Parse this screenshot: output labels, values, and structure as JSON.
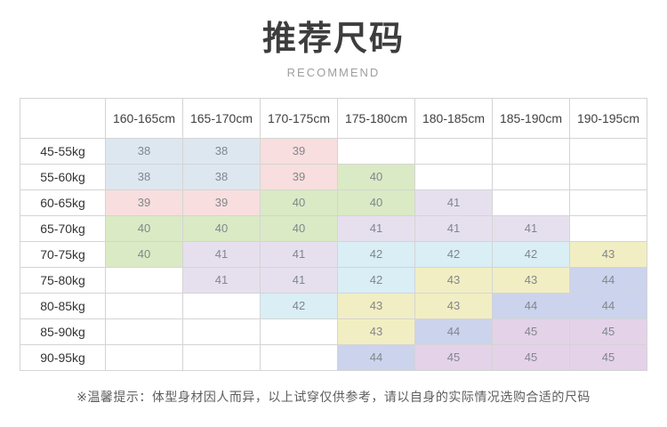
{
  "header": {
    "title": "推荐尺码",
    "subtitle": "RECOMMEND"
  },
  "footer": {
    "note": "※温馨提示：体型身材因人而异，以上试穿仅供参考，请以自身的实际情况选购合适的尺码"
  },
  "colors": {
    "size_38": "#dde7f0",
    "size_39": "#f8dede",
    "size_40": "#daeac5",
    "size_41": "#e6e0ee",
    "size_42": "#d9eef5",
    "size_43": "#f2eec3",
    "size_44": "#ccd3ed",
    "size_45": "#e4d2e9",
    "grid_border": "#d4d4d4",
    "cell_text": "#82868c"
  },
  "chart_data": {
    "type": "table",
    "title": "推荐尺码",
    "subtitle": "RECOMMEND",
    "corner_label": "",
    "columns": [
      "160-165cm",
      "165-170cm",
      "170-175cm",
      "175-180cm",
      "180-185cm",
      "185-190cm",
      "190-195cm"
    ],
    "rows": [
      "45-55kg",
      "55-60kg",
      "60-65kg",
      "65-70kg",
      "70-75kg",
      "75-80kg",
      "80-85kg",
      "85-90kg",
      "90-95kg"
    ],
    "values": [
      [
        "38",
        "38",
        "39",
        "",
        "",
        "",
        ""
      ],
      [
        "38",
        "38",
        "39",
        "40",
        "",
        "",
        ""
      ],
      [
        "39",
        "39",
        "40",
        "40",
        "41",
        "",
        ""
      ],
      [
        "40",
        "40",
        "40",
        "41",
        "41",
        "41",
        ""
      ],
      [
        "40",
        "41",
        "41",
        "42",
        "42",
        "42",
        "43"
      ],
      [
        "",
        "41",
        "41",
        "42",
        "43",
        "43",
        "44"
      ],
      [
        "",
        "",
        "42",
        "43",
        "43",
        "44",
        "44"
      ],
      [
        "",
        "",
        "",
        "43",
        "44",
        "45",
        "45"
      ],
      [
        "",
        "",
        "",
        "44",
        "45",
        "45",
        "45"
      ]
    ],
    "note": "※温馨提示：体型身材因人而异，以上试穿仅供参考，请以自身的实际情况选购合适的尺码"
  }
}
